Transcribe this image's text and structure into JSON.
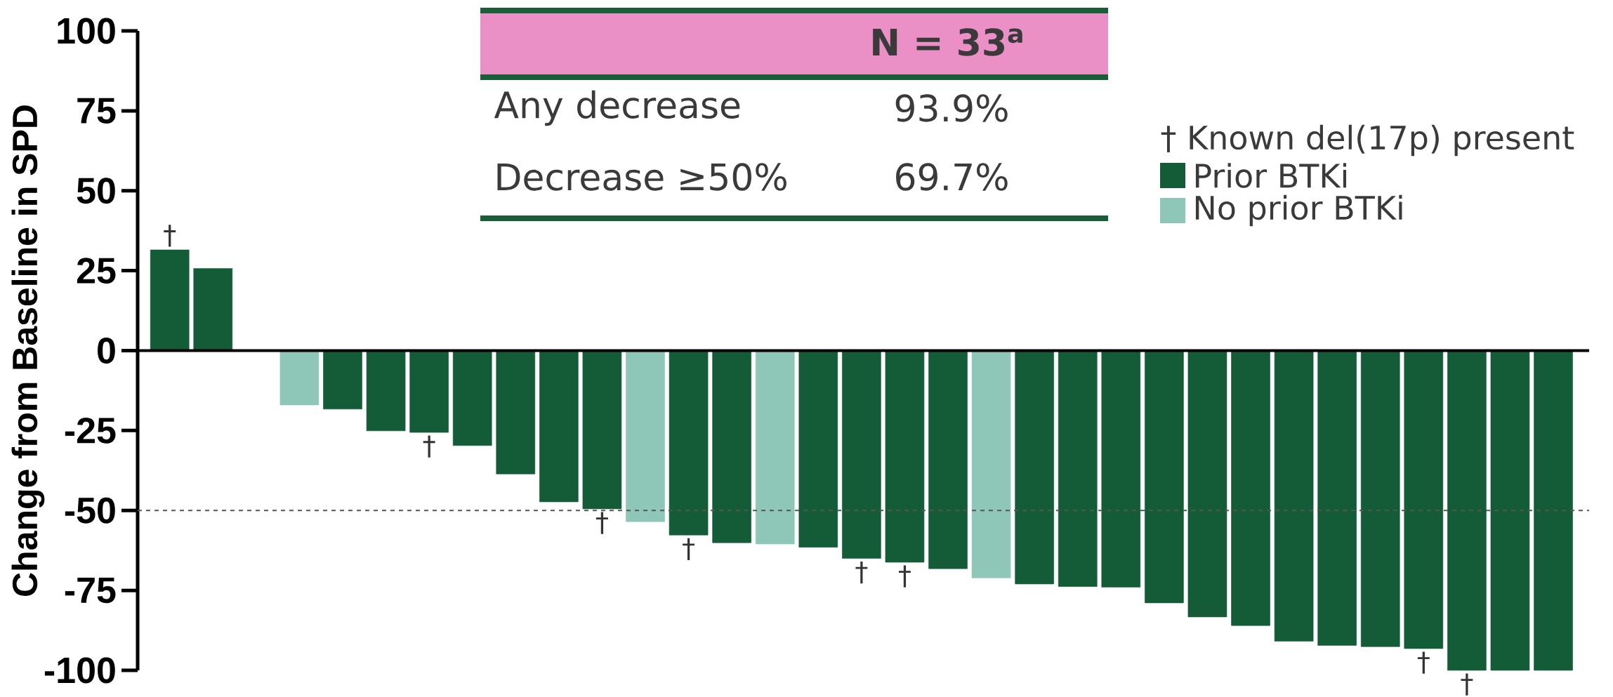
{
  "chart_data": {
    "type": "bar",
    "ylabel": "Change from Baseline in SPD",
    "categories": [
      null,
      null,
      null,
      null,
      null,
      null,
      null,
      null,
      null,
      null,
      null,
      null,
      null,
      null,
      null,
      null,
      null,
      null,
      null,
      null,
      null,
      null,
      null,
      null,
      null,
      null,
      null,
      null,
      null,
      null,
      null,
      null,
      null
    ],
    "series": [
      {
        "name": "Prior BTKi",
        "color": "#145c38",
        "values": [
          31.5,
          25.7,
          0,
          null,
          -18.3,
          -25.1,
          -25.6,
          -29.7,
          -38.6,
          -47.3,
          -49.5,
          null,
          -57.7,
          -60.1,
          null,
          -61.5,
          -65,
          -66.2,
          -68.2,
          null,
          -73,
          -73.8,
          -74,
          -78.9,
          -83.3,
          -86,
          -90.9,
          -92.2,
          -92.6,
          -93.2,
          -100,
          -100,
          -100
        ]
      },
      {
        "name": "No prior BTKi",
        "color": "#8ec7b8",
        "values": [
          null,
          null,
          null,
          -17,
          null,
          null,
          null,
          null,
          null,
          null,
          null,
          -53.5,
          null,
          null,
          -60.5,
          null,
          null,
          null,
          null,
          -71.1,
          null,
          null,
          null,
          null,
          null,
          null,
          null,
          null,
          null,
          null,
          null,
          null,
          null
        ]
      }
    ],
    "value_labels": [
      "†",
      null,
      null,
      null,
      null,
      null,
      "†",
      null,
      null,
      null,
      "†",
      null,
      "†",
      null,
      null,
      null,
      "†",
      "†",
      null,
      null,
      null,
      null,
      null,
      null,
      null,
      null,
      null,
      null,
      null,
      "†",
      "†",
      null,
      null
    ],
    "ylim": [
      -100,
      100
    ],
    "yticks": [
      -100,
      -75,
      -50,
      -25,
      0,
      25,
      50,
      75,
      100
    ],
    "ref_lines": [
      {
        "axis": "y",
        "value": -50,
        "color": "#555555",
        "line_style": "dashed"
      }
    ],
    "annotations": [
      "N = 33$^{a}$",
      "Any decrease",
      "93.9%",
      "Decrease ≥50%",
      "69.7%",
      "† Known del(17p) present"
    ],
    "legend": "top right",
    "grid": false
  }
}
